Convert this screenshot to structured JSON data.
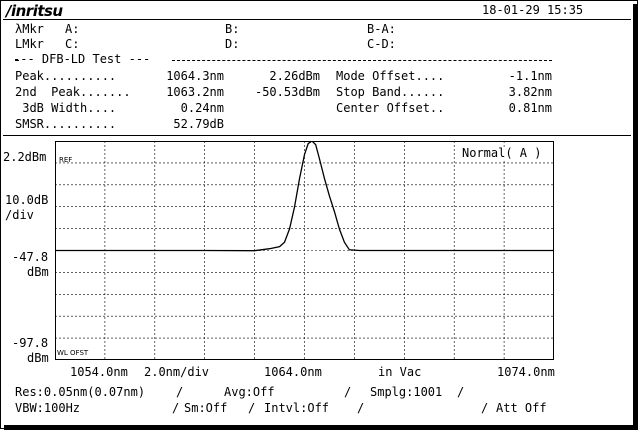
{
  "header": {
    "brand": "/inritsu",
    "datetime": "18-01-29 15:35"
  },
  "markers": {
    "lambda_label": "λMkr",
    "l_label": "LMkr",
    "a": "A:",
    "b": "B:",
    "ba": "B-A:",
    "c": "C:",
    "d": "D:",
    "cd": "C-D:"
  },
  "test": {
    "title": "--- DFB-LD Test ---",
    "rows": [
      {
        "label": "Peak..........",
        "value": "1064.3nm",
        "value2": "2.26dBm",
        "label2": "Mode Offset....",
        "value3": "-1.1nm"
      },
      {
        "label": "2nd  Peak.......",
        "value": "1063.2nm",
        "value2": "-50.53dBm",
        "label2": "Stop Band......",
        "value3": "3.82nm"
      },
      {
        "label": " 3dB Width....",
        "value": "0.24nm",
        "value2": "",
        "label2": "Center Offset..",
        "value3": "0.81nm"
      },
      {
        "label": "SMSR..........",
        "value": "52.79dB",
        "value2": "",
        "label2": "",
        "value3": ""
      }
    ]
  },
  "yaxis": {
    "top": "2.2dBm",
    "scale_1": "10.0dB",
    "scale_2": "/div",
    "mid_1": "-47.8",
    "mid_2": "dBm",
    "bot_1": "-97.8",
    "bot_2": "dBm"
  },
  "plot": {
    "ref_label": "REF",
    "ofst_label": "WL OFST",
    "mode_label": "Normal( A )"
  },
  "xaxis": {
    "start": "1054.0nm",
    "div": "2.0nm/div",
    "center": "1064.0nm",
    "medium": "in Vac",
    "stop": "1074.0nm"
  },
  "status": {
    "res": "Res:0.05nm(0.07nm)",
    "avg": "Avg:Off",
    "smplg": "Smplg:1001",
    "vbw": "VBW:100Hz",
    "sm": "Sm:Off",
    "intvl": "Intvl:Off",
    "att": "Att Off",
    "sep": "/"
  },
  "chart_data": {
    "type": "line",
    "xlabel": "",
    "ylabel": "",
    "xlim": [
      1054.0,
      1074.0
    ],
    "ylim": [
      -97.8,
      2.2
    ],
    "y_unit": "dBm",
    "grid": true,
    "series": [
      {
        "x": [
          1054.0,
          1056.0,
          1058.0,
          1060.0,
          1062.0,
          1062.6,
          1063.0,
          1063.2,
          1063.4,
          1063.6,
          1063.8,
          1064.0,
          1064.15,
          1064.3,
          1064.45,
          1064.6,
          1064.8,
          1065.0,
          1065.2,
          1065.4,
          1065.6,
          1065.8,
          1066.2,
          1068.0,
          1070.0,
          1072.0,
          1074.0
        ],
        "y": [
          -47.8,
          -47.8,
          -47.8,
          -47.8,
          -47.9,
          -47.0,
          -46.0,
          -44.0,
          -38.0,
          -28.0,
          -15.0,
          -4.0,
          1.0,
          2.2,
          0.5,
          -6.0,
          -15.0,
          -23.0,
          -30.0,
          -38.0,
          -44.0,
          -47.5,
          -47.8,
          -47.8,
          -47.8,
          -47.8,
          -47.8
        ]
      }
    ]
  }
}
